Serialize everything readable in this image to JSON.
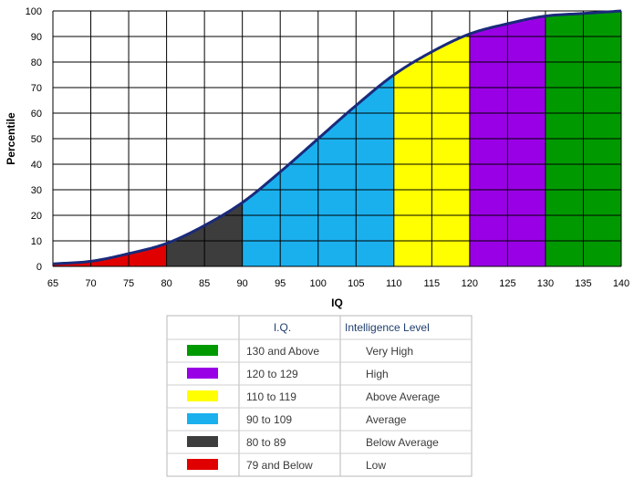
{
  "chart_data": {
    "type": "area",
    "xlabel": "IQ",
    "ylabel": "Percentile",
    "xlim": [
      65,
      140
    ],
    "ylim": [
      0,
      100
    ],
    "x_ticks": [
      "65",
      "70",
      "75",
      "80",
      "85",
      "90",
      "95",
      "100",
      "105",
      "110",
      "115",
      "120",
      "125",
      "130",
      "135",
      "140"
    ],
    "y_ticks": [
      "0",
      "10",
      "20",
      "30",
      "40",
      "50",
      "60",
      "70",
      "80",
      "90",
      "100"
    ],
    "grid": true,
    "curve_color": "#1a2a7a",
    "curve": {
      "x": [
        65,
        70,
        75,
        80,
        85,
        90,
        95,
        100,
        105,
        110,
        115,
        120,
        125,
        130,
        135,
        140
      ],
      "y": [
        1,
        2,
        5,
        9,
        16,
        25,
        37,
        50,
        63,
        75,
        84,
        91,
        95,
        98,
        99,
        100
      ]
    },
    "bands": [
      {
        "name": "79 and Below",
        "from": 65,
        "to": 80,
        "color": "#e00000"
      },
      {
        "name": "80 to 89",
        "from": 80,
        "to": 90,
        "color": "#3d3d3d"
      },
      {
        "name": "90 to 109",
        "from": 90,
        "to": 110,
        "color": "#1ab0ee"
      },
      {
        "name": "110 to 119",
        "from": 110,
        "to": 120,
        "color": "#ffff00"
      },
      {
        "name": "120 to 129",
        "from": 120,
        "to": 130,
        "color": "#9a00e6"
      },
      {
        "name": "130 and Above",
        "from": 130,
        "to": 140,
        "color": "#009a00"
      }
    ]
  },
  "legend": {
    "header_iq": "I.Q.",
    "header_level": "Intelligence Level",
    "rows": [
      {
        "color": "#009a00",
        "iq": "130 and Above",
        "level": "Very High"
      },
      {
        "color": "#9a00e6",
        "iq": "120 to 129",
        "level": "High"
      },
      {
        "color": "#ffff00",
        "iq": "110 to 119",
        "level": "Above Average"
      },
      {
        "color": "#1ab0ee",
        "iq": "90 to 109",
        "level": "Average"
      },
      {
        "color": "#3d3d3d",
        "iq": "80 to 89",
        "level": "Below Average"
      },
      {
        "color": "#e00000",
        "iq": "79 and Below",
        "level": "Low"
      }
    ]
  }
}
